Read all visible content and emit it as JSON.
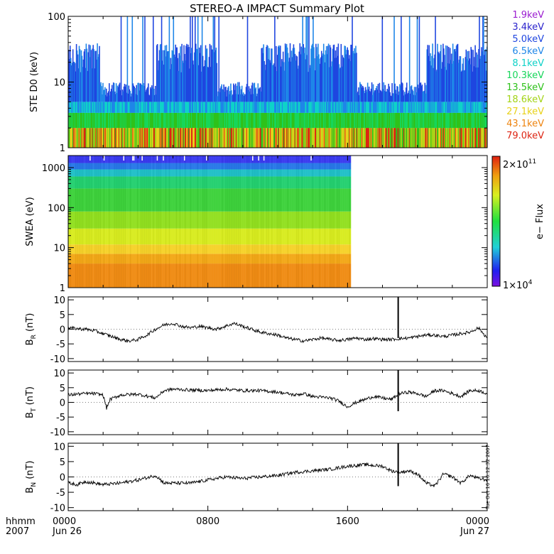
{
  "title": "STEREO-A IMPACT Summary Plot",
  "timestamp": "Tue Oct 16 16:12:32 2007",
  "time_axis": {
    "row1_label": "hhmm",
    "row2_label": "2007",
    "ticks": [
      {
        "hours": 0,
        "label": "0000",
        "sub": "Jun 26"
      },
      {
        "hours": 8,
        "label": "0800",
        "sub": ""
      },
      {
        "hours": 16,
        "label": "1600",
        "sub": ""
      },
      {
        "hours": 24,
        "label": "0000",
        "sub": "Jun 27"
      }
    ]
  },
  "colorbar": {
    "label": "e− Flux",
    "max_base": "2×10",
    "max_exp": "11",
    "min_base": "1×10",
    "min_exp": "4"
  },
  "chart_data": [
    {
      "type": "line",
      "panel": "ste",
      "ylabel": "STE D0 (keV)",
      "scale": "log",
      "ylim": [
        1,
        100
      ],
      "yticks": [
        1,
        10,
        100
      ],
      "xlim_hours": [
        0,
        24
      ],
      "legend": [
        {
          "name": "1.9keV",
          "color": "#9b1cd0"
        },
        {
          "name": "3.4keV",
          "color": "#2a22cc"
        },
        {
          "name": "5.0keV",
          "color": "#1f46e0"
        },
        {
          "name": "6.5keV",
          "color": "#1e86e8"
        },
        {
          "name": "8.1keV",
          "color": "#0fd2c8"
        },
        {
          "name": "10.3keV",
          "color": "#17d65a"
        },
        {
          "name": "13.5keV",
          "color": "#2ec21a"
        },
        {
          "name": "18.6keV",
          "color": "#a4d417"
        },
        {
          "name": "27.1keV",
          "color": "#e8d21a"
        },
        {
          "name": "43.1keV",
          "color": "#ee8410"
        },
        {
          "name": "79.0keV",
          "color": "#dd2412"
        }
      ]
    },
    {
      "type": "heatmap",
      "panel": "swea",
      "ylabel": "SWEA (eV)",
      "scale": "log",
      "ylim": [
        1,
        2000
      ],
      "yticks": [
        1,
        10,
        100,
        1000
      ],
      "data_end_hours": 16.2
    },
    {
      "type": "line",
      "panel": "br",
      "ylabel_main": "B",
      "ylabel_sub": "R",
      "ylabel_unit": " (nT)",
      "ylim": [
        -11,
        11
      ],
      "yticks": [
        10,
        5,
        0,
        -5,
        -10
      ],
      "spike_hours": 18.9,
      "points": [
        [
          0,
          0.5
        ],
        [
          0.5,
          0.2
        ],
        [
          1,
          0
        ],
        [
          1.5,
          -0.5
        ],
        [
          2,
          -1.5
        ],
        [
          2.5,
          -2.5
        ],
        [
          3,
          -3.5
        ],
        [
          3.5,
          -4
        ],
        [
          4,
          -3.5
        ],
        [
          4.5,
          -2
        ],
        [
          5,
          0
        ],
        [
          5.5,
          1.5
        ],
        [
          6,
          2
        ],
        [
          6.5,
          1
        ],
        [
          7,
          0.5
        ],
        [
          7.5,
          1
        ],
        [
          8,
          0.5
        ],
        [
          8.5,
          0
        ],
        [
          9,
          1
        ],
        [
          9.5,
          2
        ],
        [
          10,
          1
        ],
        [
          10.5,
          0
        ],
        [
          11,
          -1
        ],
        [
          11.5,
          -1.5
        ],
        [
          12,
          -2
        ],
        [
          12.5,
          -3
        ],
        [
          13,
          -3.5
        ],
        [
          13.5,
          -4
        ],
        [
          14,
          -3.5
        ],
        [
          14.5,
          -3
        ],
        [
          15,
          -3.5
        ],
        [
          15.5,
          -3.8
        ],
        [
          16,
          -3.5
        ],
        [
          16.5,
          -3
        ],
        [
          17,
          -3.5
        ],
        [
          17.5,
          -3.2
        ],
        [
          18,
          -3.5
        ],
        [
          18.5,
          -3.5
        ],
        [
          19,
          -3.2
        ],
        [
          19.5,
          -3
        ],
        [
          20,
          -2.5
        ],
        [
          20.5,
          -2
        ],
        [
          21,
          -2
        ],
        [
          21.5,
          -2.5
        ],
        [
          22,
          -2
        ],
        [
          22.5,
          -1.5
        ],
        [
          23,
          -1
        ],
        [
          23.5,
          0.5
        ],
        [
          24,
          -3
        ]
      ]
    },
    {
      "type": "line",
      "panel": "bt",
      "ylabel_main": "B",
      "ylabel_sub": "T",
      "ylabel_unit": " (nT)",
      "ylim": [
        -11,
        11
      ],
      "yticks": [
        10,
        5,
        0,
        -5,
        -10
      ],
      "spike_hours": 18.9,
      "points": [
        [
          0,
          2.5
        ],
        [
          0.5,
          2.8
        ],
        [
          1,
          3
        ],
        [
          1.5,
          3
        ],
        [
          2,
          2.5
        ],
        [
          2.2,
          -2
        ],
        [
          2.4,
          1
        ],
        [
          3,
          2.5
        ],
        [
          4,
          2.8
        ],
        [
          5,
          1.5
        ],
        [
          5.5,
          4
        ],
        [
          6,
          4.5
        ],
        [
          7,
          4.2
        ],
        [
          8,
          4
        ],
        [
          9,
          4.5
        ],
        [
          10,
          4
        ],
        [
          11,
          4
        ],
        [
          12,
          3.5
        ],
        [
          13,
          2.5
        ],
        [
          13.5,
          3
        ],
        [
          14,
          2
        ],
        [
          15,
          1.5
        ],
        [
          15.5,
          0.5
        ],
        [
          16,
          -1.5
        ],
        [
          16.5,
          0
        ],
        [
          17,
          1
        ],
        [
          17.5,
          2
        ],
        [
          18,
          1.5
        ],
        [
          18.5,
          1
        ],
        [
          19,
          3
        ],
        [
          19.5,
          3.5
        ],
        [
          20,
          3
        ],
        [
          20.5,
          2
        ],
        [
          21,
          4
        ],
        [
          21.5,
          4
        ],
        [
          22,
          3
        ],
        [
          22.5,
          2
        ],
        [
          23,
          4
        ],
        [
          23.5,
          4
        ],
        [
          24,
          3
        ]
      ]
    },
    {
      "type": "line",
      "panel": "bn",
      "ylabel_main": "B",
      "ylabel_sub": "N",
      "ylabel_unit": " (nT)",
      "ylim": [
        -11,
        11
      ],
      "yticks": [
        10,
        5,
        0,
        -5,
        -10
      ],
      "spike_hours": 18.9,
      "points": [
        [
          0,
          -2
        ],
        [
          0.5,
          -2.5
        ],
        [
          1,
          -1.5
        ],
        [
          1.5,
          -2
        ],
        [
          2,
          -2.5
        ],
        [
          3,
          -2
        ],
        [
          4,
          -1
        ],
        [
          5,
          0.5
        ],
        [
          5.5,
          -2
        ],
        [
          6,
          -2
        ],
        [
          7,
          -2
        ],
        [
          8,
          -1
        ],
        [
          9,
          0
        ],
        [
          10,
          -0.5
        ],
        [
          11,
          0
        ],
        [
          12,
          0.5
        ],
        [
          13,
          1.5
        ],
        [
          14,
          2
        ],
        [
          15,
          2.5
        ],
        [
          16,
          3.5
        ],
        [
          17,
          4
        ],
        [
          18,
          3.5
        ],
        [
          18.5,
          2
        ],
        [
          19,
          1.5
        ],
        [
          19.5,
          2
        ],
        [
          20,
          1
        ],
        [
          20.5,
          -2
        ],
        [
          21,
          -3
        ],
        [
          21.5,
          1
        ],
        [
          22,
          0
        ],
        [
          22.5,
          -2
        ],
        [
          23,
          0.5
        ],
        [
          23.5,
          -0.5
        ],
        [
          24,
          -1
        ]
      ]
    }
  ]
}
